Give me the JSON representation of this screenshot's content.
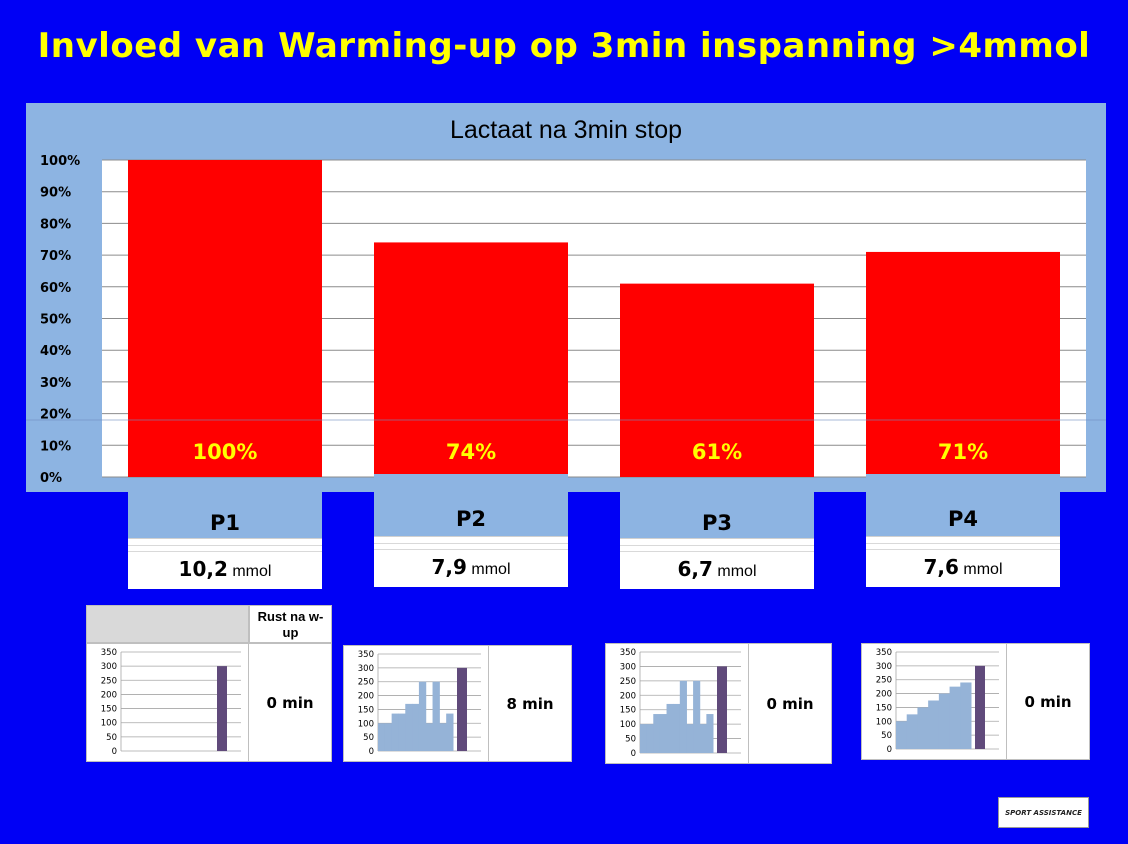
{
  "title": "Invloed van Warming-up op 3min inspanning >4mmol",
  "chart_data": {
    "type": "bar",
    "title": "Lactaat na 3min stop",
    "categories": [
      "P1",
      "P2",
      "P3",
      "P4"
    ],
    "values": [
      100,
      74,
      61,
      71
    ],
    "data_labels": [
      "100%",
      "74%",
      "61%",
      "71%"
    ],
    "y_tick_labels": [
      "0%",
      "10%",
      "20%",
      "30%",
      "40%",
      "50%",
      "60%",
      "70%",
      "80%",
      "90%",
      "100%"
    ],
    "ylim": [
      0,
      100
    ],
    "grid": true,
    "bar_color": "#ff0000",
    "label_color": "#ffff00"
  },
  "measurements": [
    {
      "value": "10,2",
      "unit": "mmol"
    },
    {
      "value": "7,9",
      "unit": "mmol"
    },
    {
      "value": "6,7",
      "unit": "mmol"
    },
    {
      "value": "7,6",
      "unit": "mmol"
    }
  ],
  "rest_header": "Rust na w-up",
  "warmup_charts": [
    {
      "type": "bar",
      "y_ticks": [
        "0",
        "50",
        "100",
        "150",
        "200",
        "250",
        "300",
        "350"
      ],
      "ylim": [
        0,
        350
      ],
      "warmup": [],
      "effort": 300,
      "rest": "0 min"
    },
    {
      "type": "bar",
      "y_ticks": [
        "0",
        "50",
        "100",
        "150",
        "200",
        "250",
        "300",
        "350"
      ],
      "ylim": [
        0,
        350
      ],
      "warmup": [
        100,
        100,
        135,
        135,
        170,
        170,
        250,
        100,
        250,
        100,
        135
      ],
      "effort": 300,
      "rest": "8 min"
    },
    {
      "type": "bar",
      "y_ticks": [
        "0",
        "50",
        "100",
        "150",
        "200",
        "250",
        "300",
        "350"
      ],
      "ylim": [
        0,
        350
      ],
      "warmup": [
        100,
        100,
        135,
        135,
        170,
        170,
        250,
        100,
        250,
        100,
        135
      ],
      "effort": 300,
      "rest": "0 min"
    },
    {
      "type": "bar",
      "y_ticks": [
        "0",
        "50",
        "100",
        "150",
        "200",
        "250",
        "300",
        "350"
      ],
      "ylim": [
        0,
        350
      ],
      "warmup": [
        100,
        125,
        150,
        175,
        200,
        225,
        240
      ],
      "effort": 300,
      "rest": "0 min"
    }
  ],
  "logo_text": "SPORT ASSISTANCE"
}
